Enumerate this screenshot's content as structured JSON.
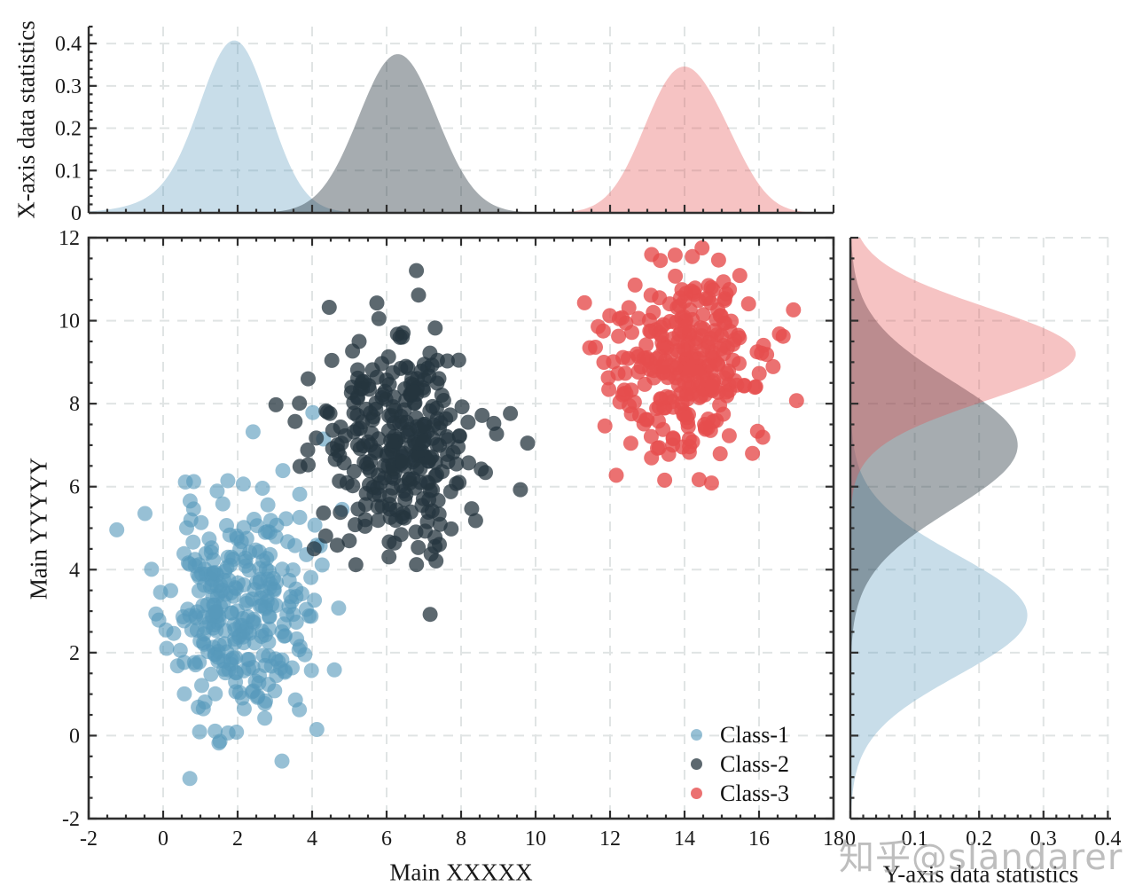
{
  "watermark": {
    "text": "知乎@slandarer"
  },
  "style": {
    "background": "#ffffff",
    "axis_color": "#2e2e2e",
    "grid_color": "#e0e4e4",
    "label_color": "#1a1a1a",
    "watermark_color": "rgba(150,150,150,0.62)"
  },
  "chart_data": {
    "type": "scatter",
    "description": "Joint scatter plot of three Gaussian clusters with kernel-density marginals on top (x) and right (y).",
    "legend": {
      "position": "lower right",
      "entries": [
        "Class-1",
        "Class-2",
        "Class-3"
      ]
    },
    "classes": [
      {
        "name": "Class-1",
        "color": "#5799BC",
        "marker_alpha": 0.62,
        "n": 310,
        "seed": 11,
        "mean": [
          2.05,
          2.95
        ],
        "std": [
          0.95,
          1.4
        ]
      },
      {
        "name": "Class-2",
        "color": "#26363F",
        "marker_alpha": 0.75,
        "n": 310,
        "seed": 22,
        "mean": [
          6.3,
          7.1
        ],
        "std": [
          1.05,
          1.25
        ]
      },
      {
        "name": "Class-3",
        "color": "#E64E4E",
        "marker_alpha": 0.8,
        "n": 300,
        "seed": 33,
        "mean": [
          14.0,
          8.95
        ],
        "std": [
          1.05,
          1.15
        ]
      }
    ],
    "main": {
      "xlabel": "Main XXXXX",
      "ylabel": "Main YYYYY",
      "xlim": [
        -2,
        18
      ],
      "ylim": [
        -2,
        12
      ],
      "xticks": [
        -2,
        0,
        2,
        4,
        6,
        8,
        10,
        12,
        14,
        16,
        18
      ],
      "yticks": [
        -2,
        0,
        2,
        4,
        6,
        8,
        10,
        12
      ],
      "minor_step": 0.5,
      "grid": "dashed"
    },
    "top_marginal": {
      "ylabel": "X-axis data statistics",
      "ylim": [
        0,
        0.44
      ],
      "yticks": [
        0,
        0.1,
        0.2,
        0.3,
        0.4
      ],
      "minor_step": 0.02,
      "densities": [
        {
          "name": "Class-1",
          "fill_alpha": 0.33,
          "peak": 0.41,
          "components": [
            [
              1.95,
              0.9,
              0.36
            ],
            [
              1.2,
              1.35,
              0.055
            ]
          ]
        },
        {
          "name": "Class-2",
          "fill_alpha": 0.41,
          "peak": 0.375,
          "components": [
            [
              6.3,
              1.05,
              0.375
            ]
          ]
        },
        {
          "name": "Class-3",
          "fill_alpha": 0.34,
          "peak": 0.355,
          "components": [
            [
              13.85,
              0.95,
              0.325
            ],
            [
              15.15,
              0.75,
              0.08
            ]
          ]
        }
      ]
    },
    "right_marginal": {
      "xlabel": "Y-axis data statistics",
      "xlim": [
        0,
        0.405
      ],
      "xticks": [
        0,
        0.1,
        0.2,
        0.3,
        0.4
      ],
      "minor_step": 0.02,
      "densities": [
        {
          "name": "Class-1",
          "fill_alpha": 0.33,
          "peak": 0.275,
          "components": [
            [
              2.9,
              1.45,
              0.275
            ]
          ]
        },
        {
          "name": "Class-2",
          "fill_alpha": 0.41,
          "peak": 0.26,
          "components": [
            [
              7.0,
              1.55,
              0.26
            ]
          ]
        },
        {
          "name": "Class-3",
          "fill_alpha": 0.34,
          "peak": 0.35,
          "components": [
            [
              9.2,
              1.12,
              0.35
            ]
          ]
        }
      ]
    }
  }
}
